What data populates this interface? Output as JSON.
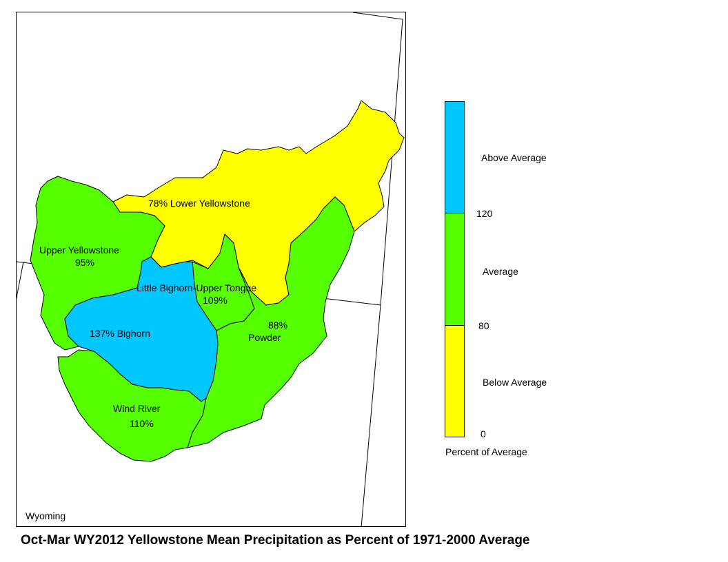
{
  "title": "Oct-Mar WY2012 Yellowstone Mean Precipitation as Percent of 1971-2000 Average",
  "state_label": "Wyoming",
  "colors": {
    "above": "#00c8ff",
    "average": "#55ff00",
    "below": "#ffff00"
  },
  "basins": [
    {
      "name": "Lower Yellowstone",
      "percent": "78%",
      "category": "below"
    },
    {
      "name": "Upper Yellowstone",
      "percent": "95%",
      "category": "average"
    },
    {
      "name": "Little Bighorn-Upper Tongue",
      "percent": "109%",
      "category": "average"
    },
    {
      "name": "Bighorn",
      "percent": "137%",
      "category": "above"
    },
    {
      "name": "Powder",
      "percent": "88%",
      "category": "average"
    },
    {
      "name": "Wind River",
      "percent": "110%",
      "category": "average"
    }
  ],
  "legend": {
    "title": "Percent of Average",
    "categories": [
      "Above Average",
      "Average",
      "Below Average"
    ],
    "breaks": [
      "120",
      "80",
      "0"
    ]
  }
}
